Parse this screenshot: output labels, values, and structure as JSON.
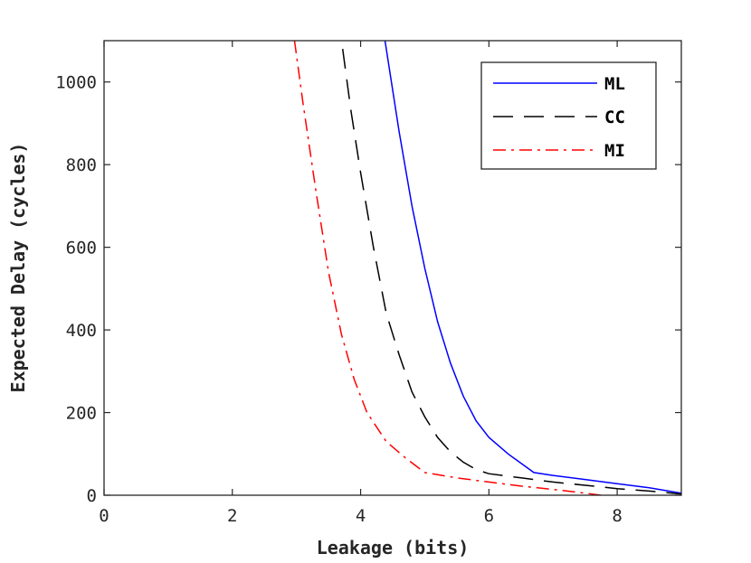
{
  "chart_data": {
    "type": "line",
    "title": "",
    "xlabel": "Leakage (bits)",
    "ylabel": "Expected Delay (cycles)",
    "xlim": [
      0,
      9
    ],
    "ylim": [
      0,
      1100
    ],
    "xticks": [
      0,
      2,
      4,
      6,
      8
    ],
    "yticks": [
      0,
      200,
      400,
      600,
      800,
      1000
    ],
    "grid": false,
    "legend_position": "top-right",
    "series": [
      {
        "name": "ML",
        "color": "#0000ff",
        "line_style": "solid",
        "x": [
          4.38,
          4.6,
          4.8,
          5.0,
          5.2,
          5.4,
          5.6,
          5.8,
          6.0,
          6.3,
          6.7,
          7.0,
          7.5,
          8.0,
          8.5,
          9.0
        ],
        "y": [
          1100,
          880,
          700,
          550,
          420,
          320,
          240,
          180,
          140,
          100,
          55,
          48,
          38,
          28,
          18,
          5
        ]
      },
      {
        "name": "CC",
        "color": "#000000",
        "line_style": "dashed",
        "x": [
          3.72,
          3.85,
          4.0,
          4.2,
          4.4,
          4.6,
          4.8,
          5.0,
          5.2,
          5.4,
          5.6,
          5.8,
          6.0,
          6.5,
          7.0,
          7.5,
          8.0,
          8.5,
          9.0
        ],
        "y": [
          1080,
          930,
          780,
          600,
          440,
          340,
          250,
          190,
          140,
          105,
          80,
          62,
          52,
          42,
          32,
          24,
          16,
          10,
          3
        ]
      },
      {
        "name": "MI",
        "color": "#ff0000",
        "line_style": "dashdot",
        "x": [
          2.97,
          3.1,
          3.3,
          3.5,
          3.7,
          3.9,
          4.1,
          4.4,
          4.7,
          5.0,
          5.5,
          6.0,
          6.5,
          7.0,
          7.5,
          7.75
        ],
        "y": [
          1100,
          950,
          740,
          540,
          390,
          280,
          200,
          130,
          90,
          55,
          42,
          32,
          22,
          14,
          5,
          0
        ]
      }
    ]
  }
}
